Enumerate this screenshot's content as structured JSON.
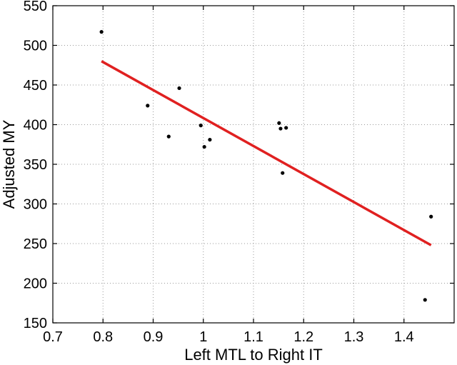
{
  "chart_data": {
    "type": "scatter",
    "title": "",
    "xlabel": "Left MTL to Right IT",
    "ylabel": "Adjusted MY",
    "xlim": [
      0.7,
      1.5
    ],
    "ylim": [
      150,
      550
    ],
    "xticks": [
      "0.7",
      "0.8",
      "0.9",
      "1",
      "1.1",
      "1.2",
      "1.3",
      "1.4"
    ],
    "yticks": [
      "150",
      "200",
      "250",
      "300",
      "350",
      "400",
      "450",
      "500",
      "550"
    ],
    "grid": true,
    "legend": "none",
    "colors": {
      "points": "#000000",
      "fit_line": "#e02020"
    },
    "points": [
      {
        "x": 0.797,
        "y": 517
      },
      {
        "x": 0.889,
        "y": 424
      },
      {
        "x": 0.931,
        "y": 385
      },
      {
        "x": 0.952,
        "y": 446
      },
      {
        "x": 0.995,
        "y": 399
      },
      {
        "x": 1.002,
        "y": 372
      },
      {
        "x": 1.013,
        "y": 381
      },
      {
        "x": 1.151,
        "y": 402
      },
      {
        "x": 1.154,
        "y": 395
      },
      {
        "x": 1.158,
        "y": 339
      },
      {
        "x": 1.165,
        "y": 396
      },
      {
        "x": 1.442,
        "y": 179
      },
      {
        "x": 1.454,
        "y": 284
      }
    ],
    "fit_line": {
      "x": [
        0.797,
        1.454
      ],
      "y": [
        480,
        248
      ]
    }
  }
}
